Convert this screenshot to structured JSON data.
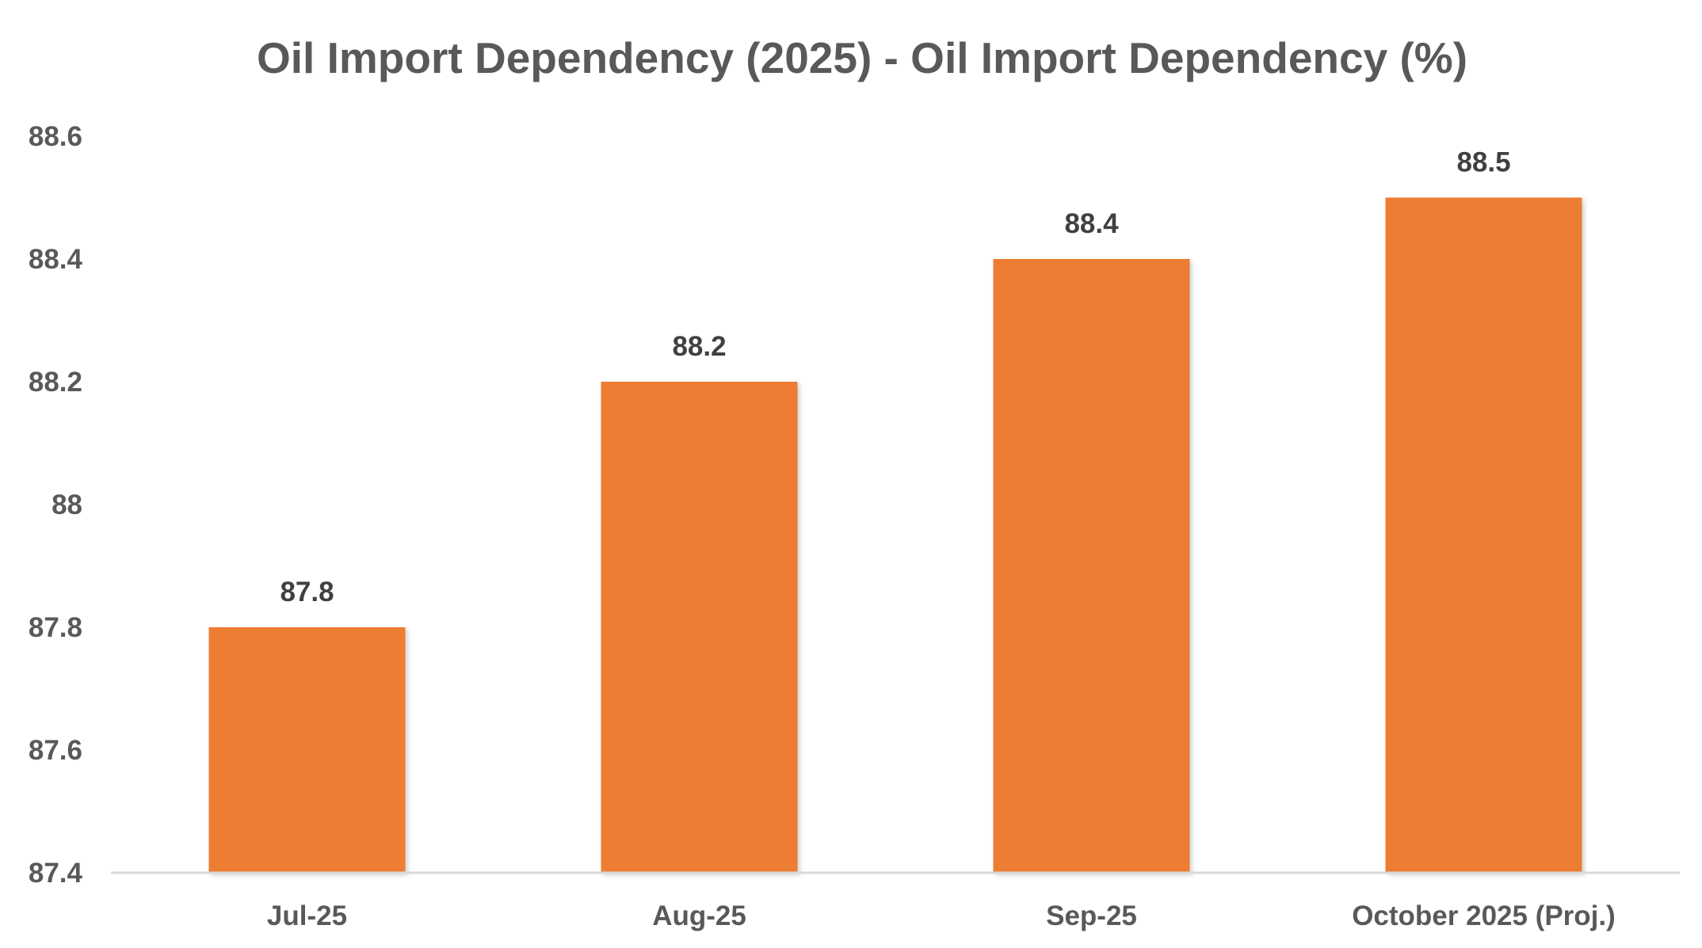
{
  "chart_data": {
    "type": "bar",
    "title": "Oil Import Dependency (2025) - Oil Import Dependency (%)",
    "categories": [
      "Jul-25",
      "Aug-25",
      "Sep-25",
      "October 2025 (Proj.)"
    ],
    "series": [
      {
        "name": "Oil Import Dependency (%)",
        "values": [
          87.8,
          88.2,
          88.4,
          88.5
        ],
        "data_labels": [
          "87.8",
          "88.2",
          "88.4",
          "88.5"
        ]
      }
    ],
    "xlabel": "",
    "ylabel": "",
    "ylim": [
      87.4,
      88.6
    ],
    "yticks": [
      87.4,
      87.6,
      87.8,
      88.0,
      88.2,
      88.4,
      88.6
    ],
    "ytick_labels": [
      "87.4",
      "87.6",
      "87.8",
      "88",
      "88.2",
      "88.4",
      "88.6"
    ],
    "grid": false,
    "legend": "none",
    "colors": {
      "bar": "#ED7D31",
      "axis": "#D9D9D9",
      "text": "#595959",
      "data_label": "#404040"
    }
  }
}
